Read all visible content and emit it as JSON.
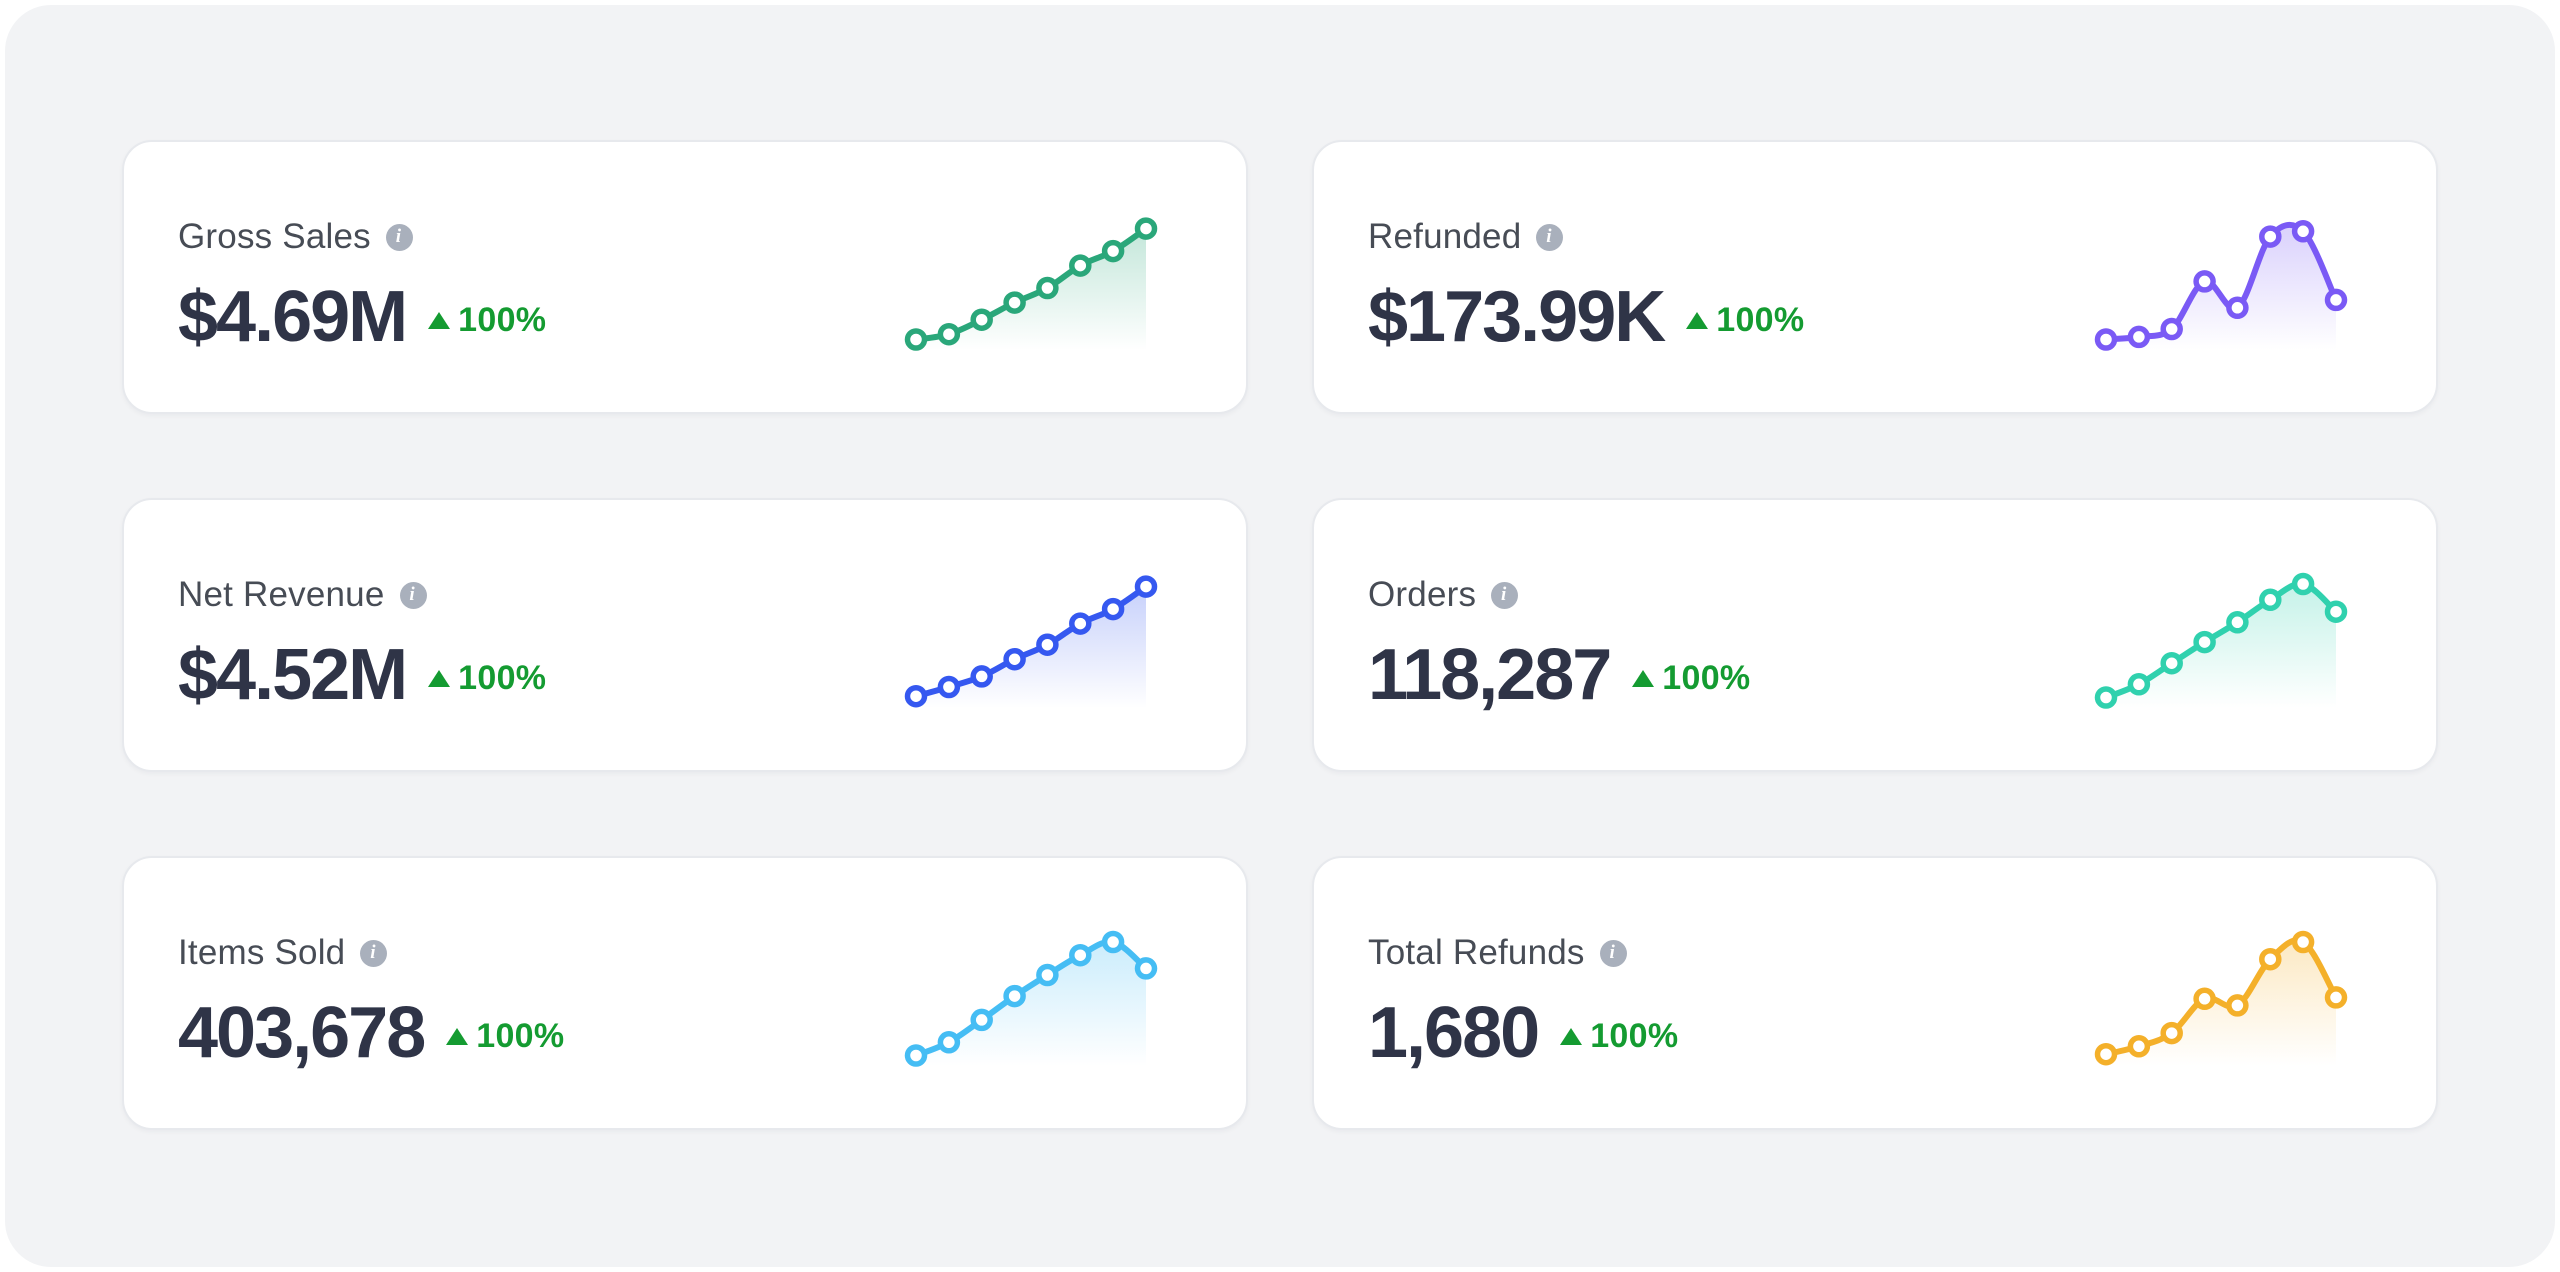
{
  "page": {
    "surface_color": "#ffffff",
    "panel_color": "#f2f3f5"
  },
  "colors": {
    "positive": "#149b31",
    "value_text": "#2f3447",
    "label_text": "#474c55",
    "info_icon_bg": "#a9b0bc",
    "card_border": "#e7e9ed"
  },
  "icons": {
    "info_glyph": "i",
    "trend_up": "triangle-up"
  },
  "chart_data": [
    {
      "type": "line",
      "title": "Gross Sales sparkline",
      "color": "#2aa77a",
      "values": [
        14,
        18,
        29,
        42,
        53,
        70,
        81,
        98
      ],
      "markers": true,
      "area_fill": "vertical-fade",
      "x_axis": "hidden",
      "y_axis": "hidden",
      "ylim": [
        0,
        100
      ]
    },
    {
      "type": "line",
      "title": "Refunded sparkline",
      "color": "#7a5af5",
      "values": [
        14,
        16,
        22,
        58,
        38,
        92,
        96,
        44
      ],
      "markers": true,
      "area_fill": "vertical-fade",
      "x_axis": "hidden",
      "y_axis": "hidden",
      "ylim": [
        0,
        100
      ]
    },
    {
      "type": "line",
      "title": "Net Revenue sparkline",
      "color": "#3558f0",
      "values": [
        15,
        22,
        30,
        43,
        54,
        70,
        81,
        98
      ],
      "markers": true,
      "area_fill": "vertical-fade",
      "x_axis": "hidden",
      "y_axis": "hidden",
      "ylim": [
        0,
        100
      ]
    },
    {
      "type": "line",
      "title": "Orders sparkline",
      "color": "#30d1ae",
      "values": [
        14,
        24,
        40,
        56,
        71,
        88,
        100,
        79
      ],
      "markers": true,
      "area_fill": "vertical-fade",
      "x_axis": "hidden",
      "y_axis": "hidden",
      "ylim": [
        0,
        100
      ]
    },
    {
      "type": "line",
      "title": "Items Sold sparkline",
      "color": "#45bdf4",
      "values": [
        14,
        24,
        41,
        59,
        75,
        90,
        100,
        80
      ],
      "markers": true,
      "area_fill": "vertical-fade",
      "x_axis": "hidden",
      "y_axis": "hidden",
      "ylim": [
        0,
        100
      ]
    },
    {
      "type": "line",
      "title": "Total Refunds sparkline",
      "color": "#f4b02a",
      "values": [
        15,
        21,
        31,
        57,
        52,
        87,
        100,
        58
      ],
      "markers": true,
      "area_fill": "vertical-fade",
      "x_axis": "hidden",
      "y_axis": "hidden",
      "ylim": [
        0,
        100
      ]
    }
  ],
  "cards": [
    {
      "label": "Gross Sales",
      "value": "$4.69M",
      "change": "100%",
      "direction": "up",
      "chart_index": 0
    },
    {
      "label": "Refunded",
      "value": "$173.99K",
      "change": "100%",
      "direction": "up",
      "chart_index": 1
    },
    {
      "label": "Net Revenue",
      "value": "$4.52M",
      "change": "100%",
      "direction": "up",
      "chart_index": 2
    },
    {
      "label": "Orders",
      "value": "118,287",
      "change": "100%",
      "direction": "up",
      "chart_index": 3
    },
    {
      "label": "Items Sold",
      "value": "403,678",
      "change": "100%",
      "direction": "up",
      "chart_index": 4
    },
    {
      "label": "Total Refunds",
      "value": "1,680",
      "change": "100%",
      "direction": "up",
      "chart_index": 5
    }
  ]
}
